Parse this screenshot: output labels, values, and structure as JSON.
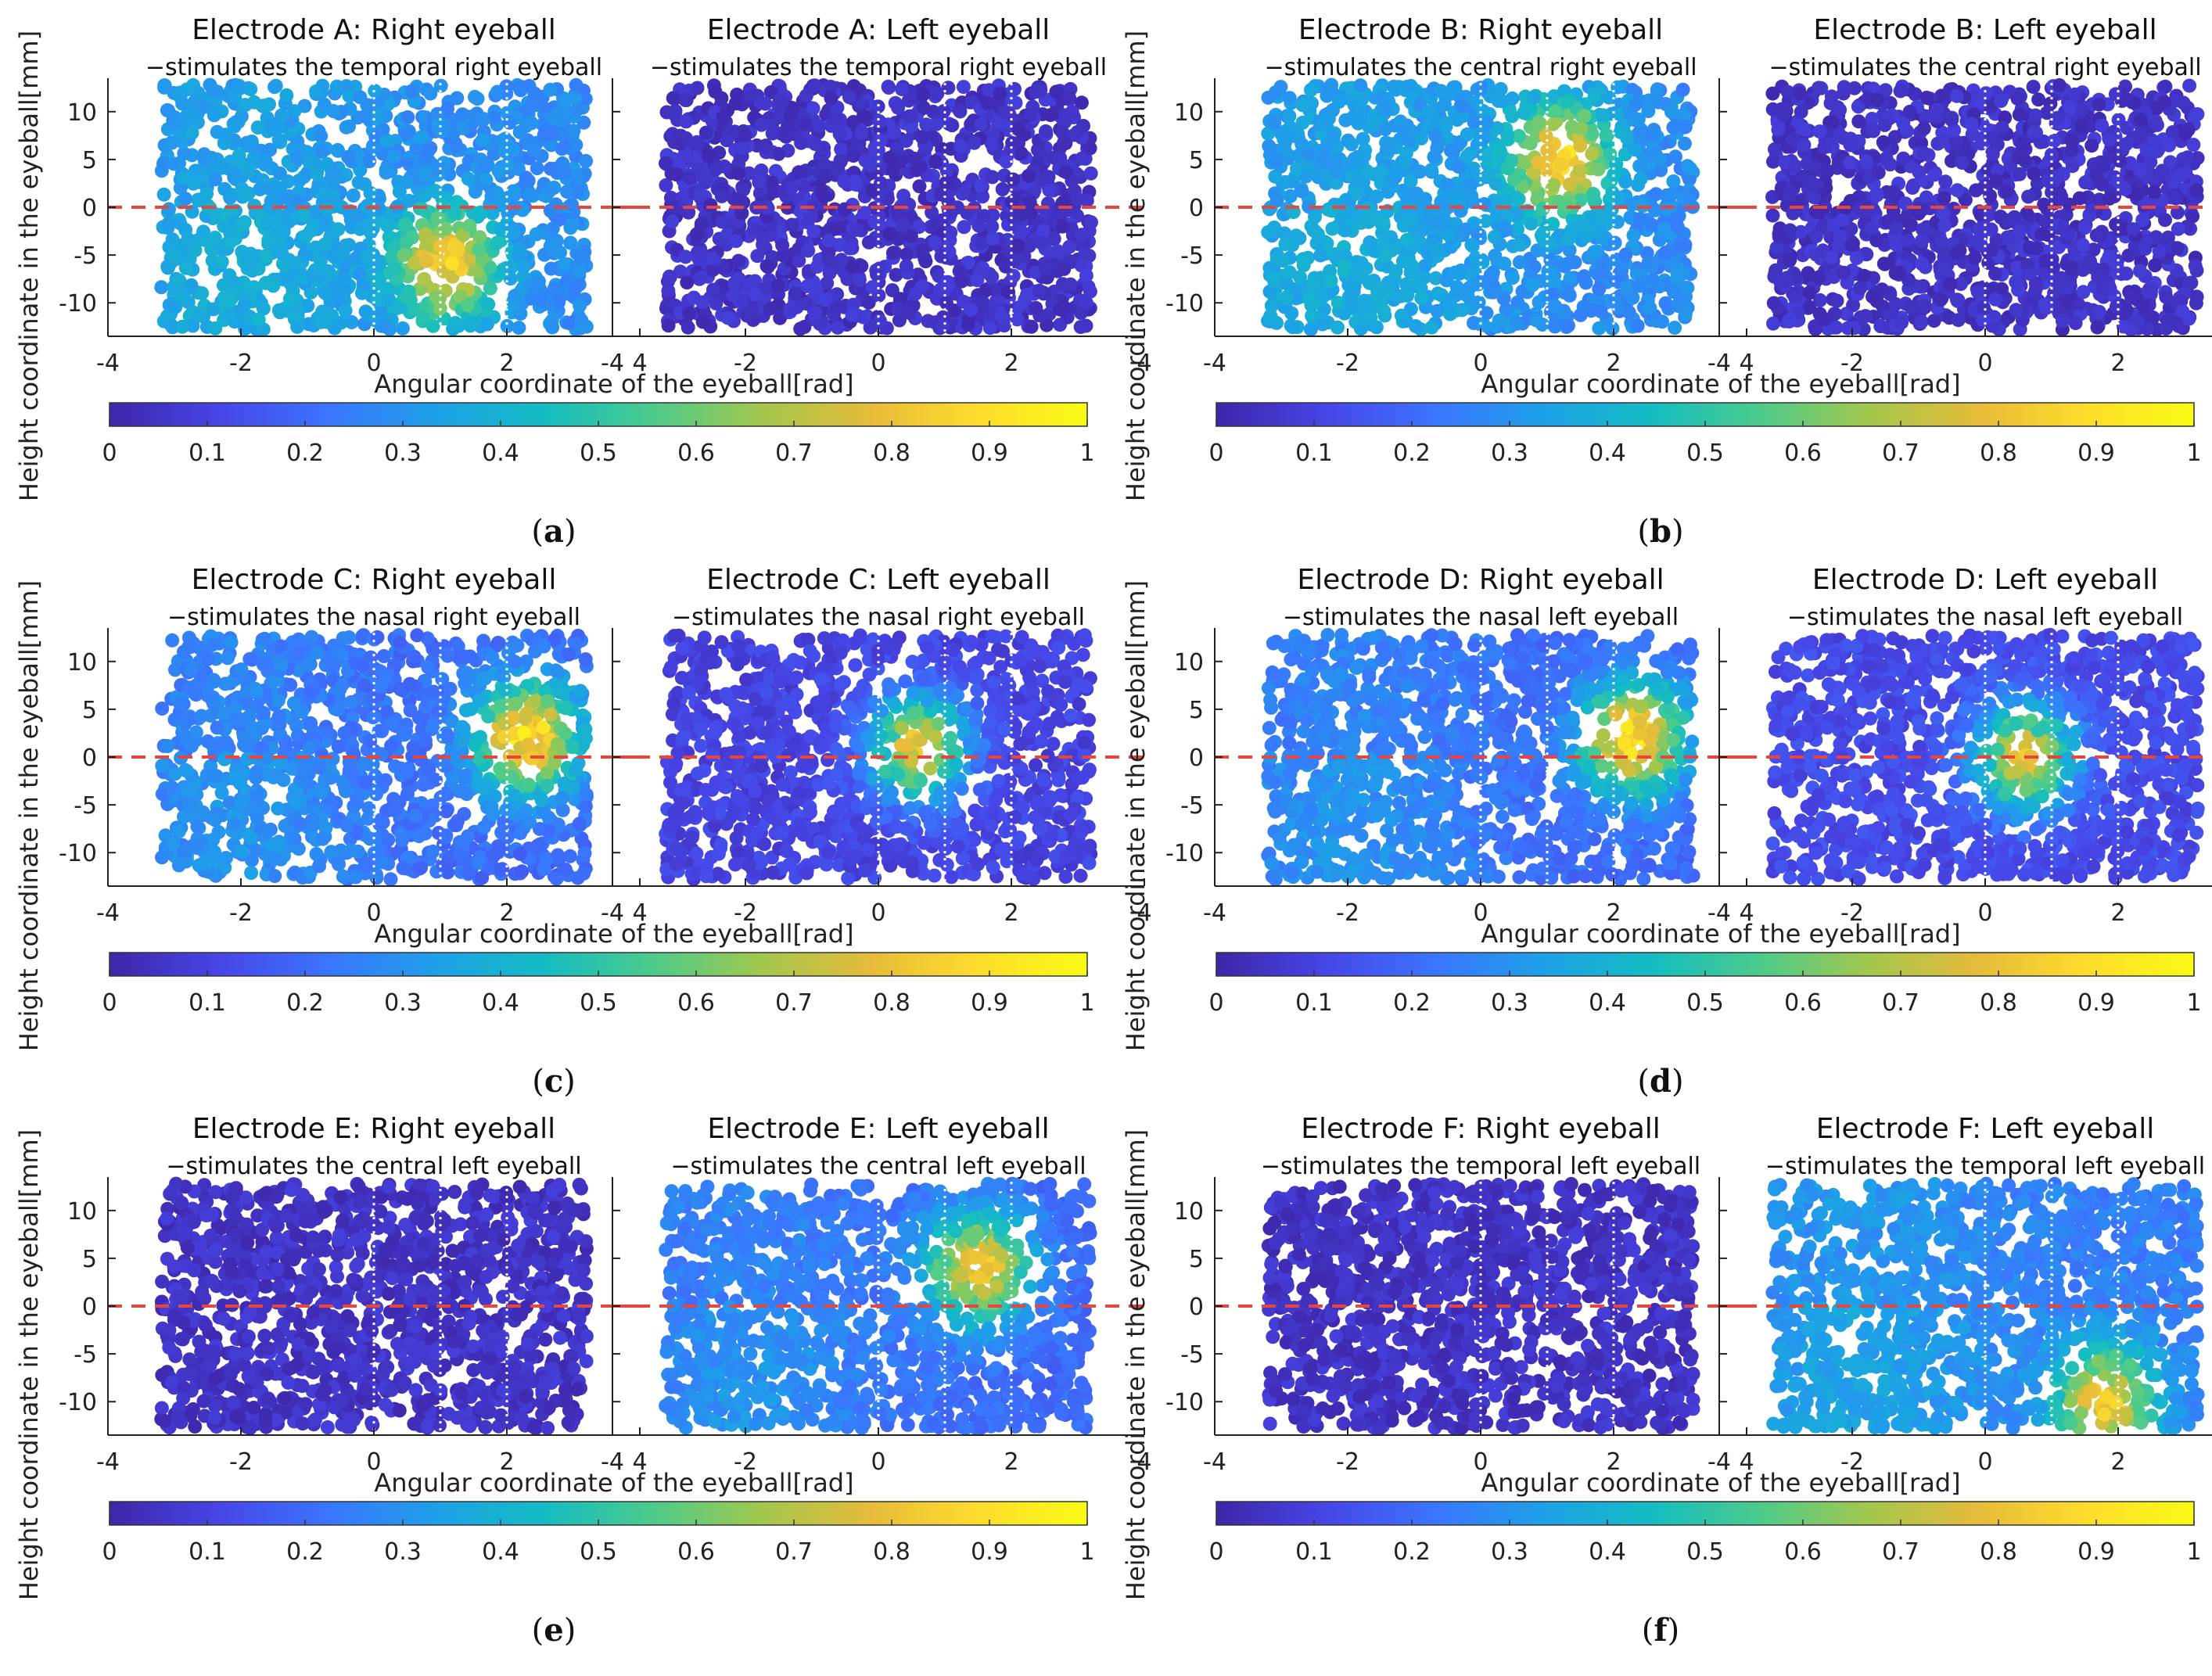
{
  "figure": {
    "xlabel": "Angular coordinate of the eyeball[rad]",
    "ylabel": "Height coordinate in the eyeball[mm]"
  },
  "colorbar": {
    "ticks": [
      "0",
      "0.1",
      "0.2",
      "0.3",
      "0.4",
      "0.5",
      "0.6",
      "0.7",
      "0.8",
      "0.9",
      "1"
    ],
    "range": [
      0,
      1
    ],
    "colormap": "parula",
    "stops": [
      "#3e26a8",
      "#4745e6",
      "#3b74fe",
      "#1ea0e8",
      "#14bcc2",
      "#4ccb8c",
      "#a2c74d",
      "#e6bb3a",
      "#fedc2c",
      "#f9fb15"
    ]
  },
  "colors": {
    "reference_line": "#e8453c",
    "divider_line": "#ffffff",
    "low_value": "#3e26a8"
  },
  "chart_data": [
    {
      "type": "scatter",
      "panel_label": "(a)",
      "electrode": "A",
      "left_plot": {
        "title": "Electrode A: Right eyeball",
        "subtitle": "−stimulates the temporal right eyeball",
        "hotspot": {
          "x": 1.1,
          "y": -6,
          "peak": 0.85
        },
        "base": 0.28
      },
      "right_plot": {
        "title": "Electrode A: Left eyeball",
        "subtitle": "−stimulates the temporal right eyeball",
        "hotspot": null,
        "base": 0.05
      },
      "xlim": [
        -4,
        4
      ],
      "ylim": [
        -13.5,
        13.5
      ],
      "xticks": [
        "-4",
        "-2",
        "0",
        "2",
        "4"
      ],
      "yticks": [
        "10",
        "5",
        "0",
        "-5",
        "-10"
      ],
      "dotted_lines_x": [
        0,
        1,
        2
      ],
      "reference_line_y": 0
    },
    {
      "type": "scatter",
      "panel_label": "(b)",
      "electrode": "B",
      "left_plot": {
        "title": "Electrode B: Right eyeball",
        "subtitle": "−stimulates the central right eyeball",
        "hotspot": {
          "x": 1.2,
          "y": 5,
          "peak": 0.9
        },
        "base": 0.28
      },
      "right_plot": {
        "title": "Electrode B: Left eyeball",
        "subtitle": "−stimulates the central right eyeball",
        "hotspot": null,
        "base": 0.05
      },
      "xlim": [
        -4,
        4
      ],
      "ylim": [
        -13.5,
        13.5
      ],
      "xticks": [
        "-4",
        "-2",
        "0",
        "2",
        "4"
      ],
      "yticks": [
        "10",
        "5",
        "0",
        "-5",
        "-10"
      ],
      "dotted_lines_x": [
        0,
        1,
        2
      ],
      "reference_line_y": 0
    },
    {
      "type": "scatter",
      "panel_label": "(c)",
      "electrode": "C",
      "left_plot": {
        "title": "Electrode C: Right eyeball",
        "subtitle": "−stimulates the nasal right eyeball",
        "hotspot": {
          "x": 2.3,
          "y": 2,
          "peak": 0.95
        },
        "base": 0.2
      },
      "right_plot": {
        "title": "Electrode C: Left eyeball",
        "subtitle": "−stimulates the nasal right eyeball",
        "hotspot": {
          "x": 0.6,
          "y": 1,
          "peak": 0.8
        },
        "base": 0.1
      },
      "xlim": [
        -4,
        4
      ],
      "ylim": [
        -13.5,
        13.5
      ],
      "xticks": [
        "-4",
        "-2",
        "0",
        "2",
        "4"
      ],
      "yticks": [
        "10",
        "5",
        "0",
        "-5",
        "-10"
      ],
      "dotted_lines_x": [
        0,
        1,
        2
      ],
      "reference_line_y": 0
    },
    {
      "type": "scatter",
      "panel_label": "(d)",
      "electrode": "D",
      "left_plot": {
        "title": "Electrode D: Right eyeball",
        "subtitle": "−stimulates the nasal left eyeball",
        "hotspot": {
          "x": 2.3,
          "y": 2,
          "peak": 0.95
        },
        "base": 0.2
      },
      "right_plot": {
        "title": "Electrode D: Left eyeball",
        "subtitle": "−stimulates the nasal left eyeball",
        "hotspot": {
          "x": 0.6,
          "y": 0,
          "peak": 0.8
        },
        "base": 0.12
      },
      "xlim": [
        -4,
        4
      ],
      "ylim": [
        -13.5,
        13.5
      ],
      "xticks": [
        "-4",
        "-2",
        "0",
        "2",
        "4"
      ],
      "yticks": [
        "10",
        "5",
        "0",
        "-5",
        "-10"
      ],
      "dotted_lines_x": [
        0,
        1,
        2
      ],
      "reference_line_y": 0
    },
    {
      "type": "scatter",
      "panel_label": "(e)",
      "electrode": "E",
      "left_plot": {
        "title": "Electrode E: Right eyeball",
        "subtitle": "−stimulates the central left eyeball",
        "hotspot": null,
        "base": 0.05
      },
      "right_plot": {
        "title": "Electrode E: Left eyeball",
        "subtitle": "−stimulates the central left eyeball",
        "hotspot": {
          "x": 1.5,
          "y": 4,
          "peak": 0.85
        },
        "base": 0.2
      },
      "xlim": [
        -4,
        4
      ],
      "ylim": [
        -13.5,
        13.5
      ],
      "xticks": [
        "-4",
        "-2",
        "0",
        "2",
        "4"
      ],
      "yticks": [
        "10",
        "5",
        "0",
        "-5",
        "-10"
      ],
      "dotted_lines_x": [
        0,
        1,
        2
      ],
      "reference_line_y": 0
    },
    {
      "type": "scatter",
      "panel_label": "(f)",
      "electrode": "F",
      "left_plot": {
        "title": "Electrode F: Right eyeball",
        "subtitle": "−stimulates the temporal left eyeball",
        "hotspot": null,
        "base": 0.05
      },
      "right_plot": {
        "title": "Electrode F: Left eyeball",
        "subtitle": "−stimulates the temporal left eyeball",
        "hotspot": {
          "x": 1.8,
          "y": -10,
          "peak": 0.85
        },
        "base": 0.25
      },
      "xlim": [
        -4,
        4
      ],
      "ylim": [
        -13.5,
        13.5
      ],
      "xticks": [
        "-4",
        "-2",
        "0",
        "2",
        "4"
      ],
      "yticks": [
        "10",
        "5",
        "0",
        "-5",
        "-10"
      ],
      "dotted_lines_x": [
        0,
        1,
        2
      ],
      "reference_line_y": 0
    }
  ]
}
